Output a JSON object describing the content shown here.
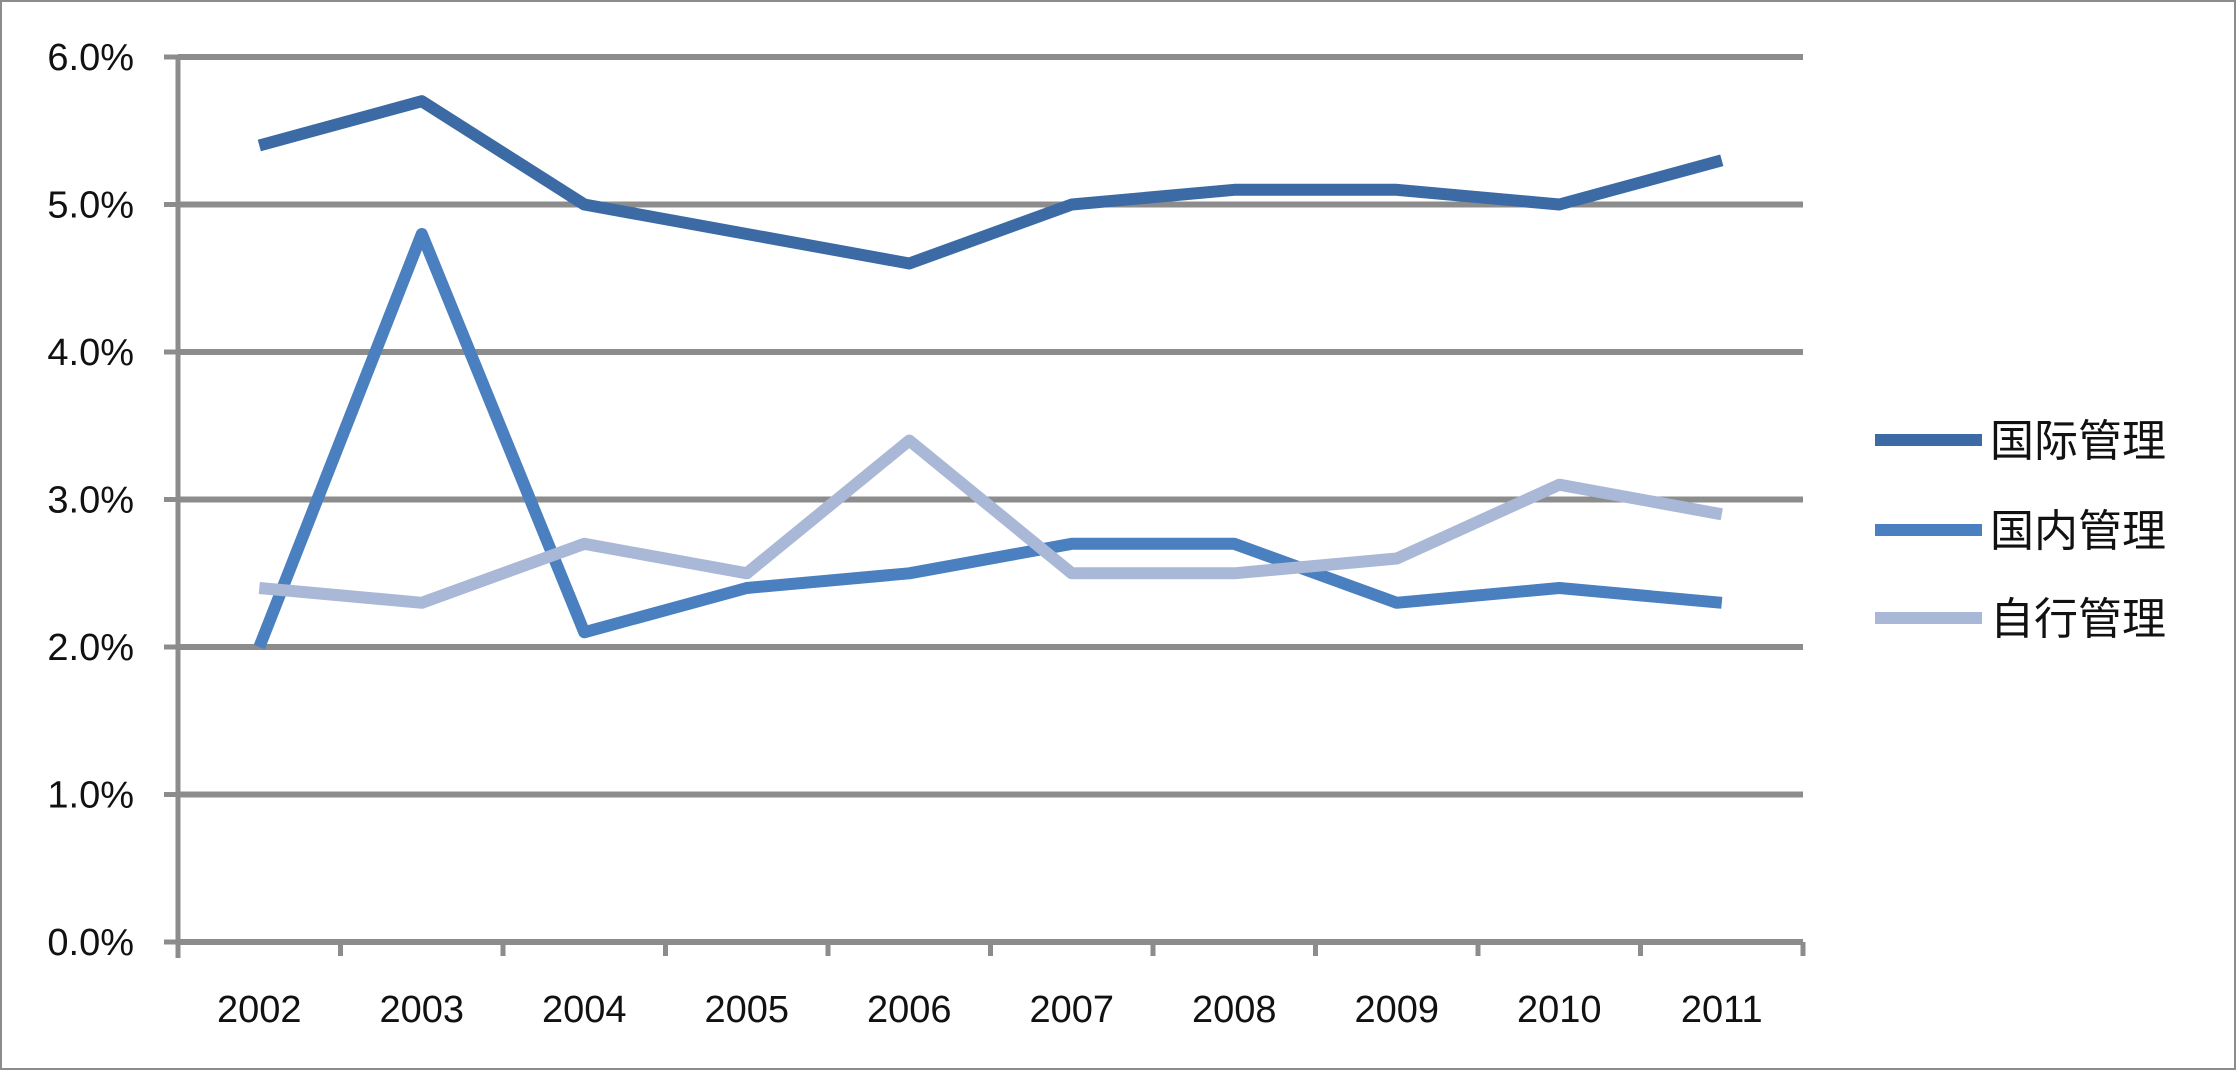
{
  "chart_data": {
    "type": "line",
    "title": "",
    "xlabel": "",
    "ylabel": "",
    "categories": [
      "2002",
      "2003",
      "2004",
      "2005",
      "2006",
      "2007",
      "2008",
      "2009",
      "2010",
      "2011"
    ],
    "y_ticks": [
      "0.0%",
      "1.0%",
      "2.0%",
      "3.0%",
      "4.0%",
      "5.0%",
      "6.0%"
    ],
    "ylim": [
      0,
      6
    ],
    "y_unit": "%",
    "grid": true,
    "legend_position": "right",
    "series": [
      {
        "name": "国际管理",
        "color": "#3c6aa4",
        "values": [
          5.4,
          5.7,
          5.0,
          4.8,
          4.6,
          5.0,
          5.1,
          5.1,
          5.0,
          5.3
        ]
      },
      {
        "name": "国内管理",
        "color": "#4a7fc0",
        "values": [
          2.0,
          4.8,
          2.1,
          2.4,
          2.5,
          2.7,
          2.7,
          2.3,
          2.4,
          2.3
        ]
      },
      {
        "name": "自行管理",
        "color": "#a9b8d6",
        "values": [
          2.4,
          2.3,
          2.7,
          2.5,
          3.4,
          2.5,
          2.5,
          2.6,
          3.1,
          2.9
        ]
      }
    ]
  }
}
